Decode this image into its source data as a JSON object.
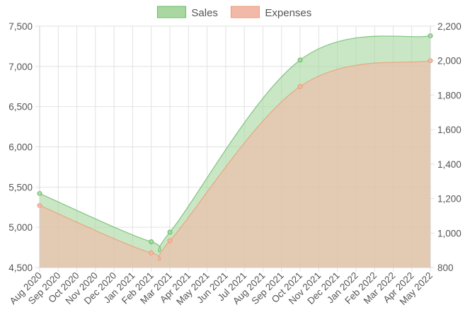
{
  "chart_data": {
    "type": "area",
    "categories": [
      "Aug 2020",
      "Sep 2020",
      "Oct 2020",
      "Nov 2020",
      "Dec 2020",
      "Jan 2021",
      "Feb 2021",
      "Mar 2021",
      "Apr 2021",
      "May 2021",
      "Jun 2021",
      "Jul 2021",
      "Aug 2021",
      "Sep 2021",
      "Oct 2021",
      "Nov 2021",
      "Dec 2021",
      "Jan 2022",
      "Feb 2022",
      "Mar 2022",
      "Apr 2022",
      "May 2022"
    ],
    "y_left": {
      "min": 4500,
      "max": 7500,
      "step": 500,
      "ticks": [
        "4,500",
        "5,000",
        "5,500",
        "6,000",
        "6,500",
        "7,000",
        "7,500"
      ]
    },
    "y_right": {
      "min": 800,
      "max": 2200,
      "step": 200,
      "ticks": [
        "800",
        "1,000",
        "1,200",
        "1,400",
        "1,600",
        "1,800",
        "2,000",
        "2,200"
      ]
    },
    "grid": true,
    "legend_position": "top-center",
    "series": [
      {
        "name": "Sales",
        "axis": "left",
        "color": "#66bb66",
        "fill": "#a8d8a0",
        "points": [
          {
            "x": "Aug 2020",
            "y": 5420
          },
          {
            "x": "Feb 2021",
            "y": 4820
          },
          {
            "x": "Mar 2021",
            "y": 4940
          },
          {
            "x": "Oct 2021",
            "y": 7080
          },
          {
            "x": "May 2022",
            "y": 7380
          }
        ]
      },
      {
        "name": "Expenses",
        "axis": "right",
        "color": "#ee9977",
        "fill": "#f3b9a8",
        "points": [
          {
            "x": "Aug 2020",
            "y": 1160
          },
          {
            "x": "Feb 2021",
            "y": 885
          },
          {
            "x": "Mar 2021",
            "y": 955
          },
          {
            "x": "Oct 2021",
            "y": 1850
          },
          {
            "x": "May 2022",
            "y": 2000
          }
        ]
      }
    ]
  }
}
